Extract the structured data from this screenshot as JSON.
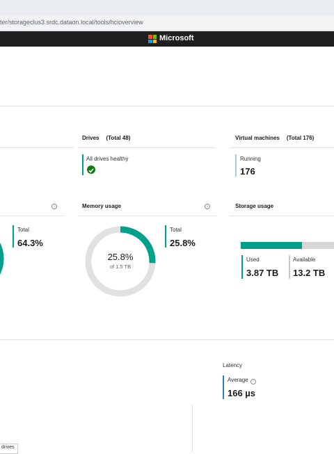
{
  "browser": {
    "url": "ter/storageclus3.srdc.dataon.local/tools/hcioverview"
  },
  "brand": {
    "text": "Microsoft"
  },
  "drives": {
    "title": "Drives",
    "total": "(Total 48)",
    "status_label": "All drives healthy"
  },
  "vms": {
    "title": "Virtual machines",
    "total": "(Total 176)",
    "running_label": "Running",
    "running_value": "176"
  },
  "cpu": {
    "total_label": "Total",
    "total_value": "64.3%",
    "fraction": 0.643
  },
  "memory": {
    "title": "Memory usage",
    "percent_text": "25.8%",
    "of_text": "of 1.5 TB",
    "total_label": "Total",
    "total_value": "25.8%",
    "fraction": 0.258
  },
  "storage": {
    "title": "Storage usage",
    "used_label": "Used",
    "used_value": "3.87 TB",
    "available_label": "Available",
    "available_value": "13.2 TB",
    "used_fraction": 0.227
  },
  "latency": {
    "title": "Latency",
    "average_label": "Average",
    "average_value": "166 µs"
  },
  "footer_tag": "drives",
  "colors": {
    "accent": "#00a08a",
    "running": "#a9c8e8",
    "latency": "#2f7ec1",
    "healthy": "#107c10",
    "track": "#e1e1e1"
  },
  "icons": {
    "info": "info-icon",
    "check": "check-icon"
  }
}
